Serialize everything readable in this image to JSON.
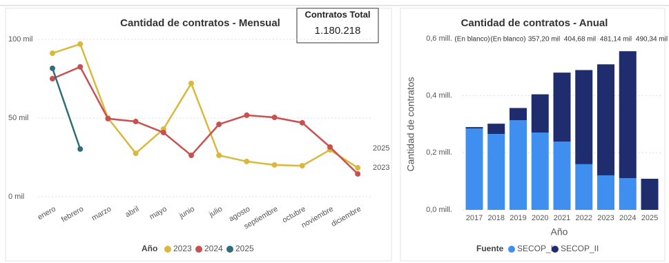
{
  "card": {
    "title": "Contratos Total",
    "value": "1.180.218"
  },
  "chart_data": [
    {
      "type": "line",
      "title": "Cantidad de contratos - Mensual",
      "categories": [
        "enero",
        "febrero",
        "marzo",
        "abril",
        "mayo",
        "junio",
        "julio",
        "agosto",
        "septiembre",
        "octubre",
        "noviembre",
        "diciembre"
      ],
      "series": [
        {
          "name": "2023",
          "color": "#d9b83a",
          "values": [
            91.2,
            97,
            50,
            27.6,
            43,
            72,
            26.3,
            22.4,
            20.2,
            19.7,
            29.8,
            18.4
          ]
        },
        {
          "name": "2024",
          "color": "#c9504f",
          "values": [
            75,
            82.5,
            49.6,
            47.8,
            40.8,
            26.3,
            46,
            51.8,
            50.4,
            47,
            31.6,
            14.5
          ]
        },
        {
          "name": "2025",
          "color": "#2e6e7a",
          "values": [
            81.6,
            30.3,
            null,
            null,
            null,
            null,
            null,
            null,
            null,
            null,
            null,
            null
          ]
        }
      ],
      "legend_title": "Año",
      "annotations": [
        "2025",
        "2023"
      ],
      "ylim": [
        0,
        100
      ],
      "yticks": [
        {
          "value": 0,
          "label": "0 mil"
        },
        {
          "value": 50,
          "label": "50 mil"
        },
        {
          "value": 100,
          "label": "100 mil"
        }
      ],
      "grid": true
    },
    {
      "type": "stacked-bar",
      "title": "Cantidad de contratos - Anual",
      "categories": [
        "2017",
        "2018",
        "2019",
        "2020",
        "2021",
        "2022",
        "2023",
        "2024",
        "2025"
      ],
      "series": [
        {
          "name": "SECOP_I",
          "color": "#3f8ff0",
          "values": [
            0.285,
            0.266,
            0.314,
            0.271,
            0.239,
            0.16,
            0.121,
            0.111,
            null
          ]
        },
        {
          "name": "SECOP_II",
          "color": "#1f2d6e",
          "values": [
            0.005,
            0.036,
            0.043,
            0.134,
            0.242,
            0.33,
            0.389,
            0.445,
            0.109
          ]
        }
      ],
      "top_labels": [
        "(En blanco)",
        "(En blanco)",
        "357,20 mil",
        "404,68 mil",
        "481,14 mil",
        "490,34 mil"
      ],
      "legend_title": "Fuente",
      "x_label": "Año",
      "y_label": "Cantidad de contratos",
      "ylim": [
        0,
        0.6
      ],
      "yticks": [
        {
          "value": 0,
          "label": "0,0 mill."
        },
        {
          "value": 0.2,
          "label": "0,2 mill."
        },
        {
          "value": 0.4,
          "label": "0,4 mill."
        },
        {
          "value": 0.6,
          "label": "0,6 mill."
        }
      ],
      "grid": true
    }
  ]
}
